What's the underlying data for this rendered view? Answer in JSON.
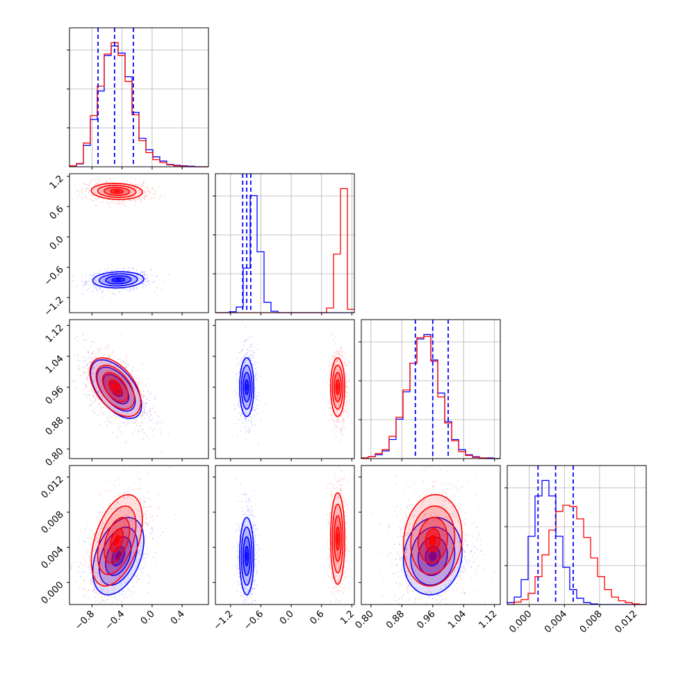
{
  "chart_data": {
    "type": "corner",
    "n_params": 4,
    "colors": {
      "series_a": "#0000ff",
      "series_b": "#ff0000",
      "grid": "#b0b0b0",
      "frame": "#000000"
    },
    "grid": true,
    "axis_ranges": [
      [
        -1.1,
        0.75
      ],
      [
        -1.5,
        1.25
      ],
      [
        0.775,
        1.135
      ],
      [
        -0.0025,
        0.0133
      ]
    ],
    "tick_labels": [
      [
        "−0.8",
        "−0.4",
        "0.0",
        "0.4"
      ],
      [
        "−1.2",
        "−0.6",
        "0.0",
        "0.6",
        "1.2"
      ],
      [
        "0.80",
        "0.88",
        "0.96",
        "1.04",
        "1.12"
      ],
      [
        "0.000",
        "0.004",
        "0.008",
        "0.012"
      ]
    ],
    "tick_values": [
      [
        -0.8,
        -0.4,
        0.0,
        0.4
      ],
      [
        -1.2,
        -0.6,
        0.0,
        0.6,
        1.2
      ],
      [
        0.8,
        0.88,
        0.96,
        1.04,
        1.12
      ],
      [
        0.0,
        0.004,
        0.008,
        0.012
      ]
    ],
    "quantile_lines": [
      [
        -0.72,
        -0.5,
        -0.25
      ],
      [
        -0.96,
        -0.88,
        -0.8
      ],
      [
        0.915,
        0.96,
        1.0
      ],
      [
        0.001,
        0.003,
        0.005
      ]
    ],
    "histograms": [
      {
        "param": 0,
        "edges_start": -1.1,
        "edges_end": 0.75,
        "bins": 20,
        "series_a": [
          2,
          6,
          45,
          100,
          160,
          235,
          255,
          240,
          190,
          115,
          60,
          36,
          21,
          12,
          5,
          3,
          2,
          1,
          0,
          0
        ],
        "series_b": [
          2,
          7,
          50,
          108,
          170,
          238,
          262,
          235,
          180,
          110,
          55,
          30,
          15,
          9,
          4,
          2,
          1,
          0,
          0,
          0
        ]
      },
      {
        "param": 1,
        "edges_start": -1.5,
        "edges_end": 1.25,
        "bins": 20,
        "series_a": [
          0,
          0,
          2,
          12,
          95,
          250,
          130,
          22,
          3,
          0,
          0,
          0,
          0,
          0,
          0,
          0,
          0,
          0,
          0,
          0
        ],
        "series_b": [
          0,
          0,
          0,
          0,
          0,
          0,
          0,
          0,
          0,
          0,
          0,
          0,
          0,
          0,
          0,
          0,
          10,
          125,
          265,
          7
        ]
      },
      {
        "param": 2,
        "edges_start": 0.775,
        "edges_end": 1.135,
        "bins": 20,
        "series_a": [
          1,
          3,
          6,
          12,
          30,
          62,
          105,
          150,
          188,
          195,
          155,
          103,
          58,
          30,
          14,
          6,
          3,
          1,
          1,
          0
        ],
        "series_b": [
          1,
          3,
          8,
          14,
          35,
          65,
          108,
          150,
          190,
          192,
          153,
          97,
          56,
          28,
          11,
          5,
          2,
          1,
          0,
          0
        ]
      },
      {
        "param": 3,
        "edges_start": -0.0025,
        "edges_end": 0.0133,
        "bins": 20,
        "series_a": [
          3,
          12,
          40,
          110,
          175,
          200,
          175,
          110,
          60,
          24,
          10,
          3,
          1,
          0,
          0,
          0,
          0,
          0,
          0,
          0
        ],
        "series_b": [
          0,
          4,
          8,
          18,
          45,
          80,
          120,
          150,
          160,
          158,
          138,
          108,
          75,
          45,
          24,
          12,
          6,
          3,
          1,
          0
        ]
      }
    ],
    "gaussians_2d": [
      {
        "pair": [
          0,
          1
        ],
        "series_a": {
          "mx": -0.45,
          "my": -0.85,
          "sx": 0.17,
          "sy": 0.08,
          "rho": 0.1
        },
        "series_b": {
          "mx": -0.47,
          "my": 0.9,
          "sx": 0.17,
          "sy": 0.08,
          "rho": -0.1
        }
      },
      {
        "pair": [
          0,
          2
        ],
        "series_a": {
          "mx": -0.48,
          "my": 0.955,
          "sx": 0.17,
          "sy": 0.038,
          "rho": -0.55
        },
        "series_b": {
          "mx": -0.49,
          "my": 0.96,
          "sx": 0.17,
          "sy": 0.038,
          "rho": -0.5
        }
      },
      {
        "pair": [
          1,
          2
        ],
        "series_a": {
          "mx": -0.88,
          "my": 0.96,
          "sx": 0.07,
          "sy": 0.038,
          "rho": 0.0
        },
        "series_b": {
          "mx": 0.92,
          "my": 0.96,
          "sx": 0.07,
          "sy": 0.038,
          "rho": 0.0
        }
      },
      {
        "pair": [
          0,
          3
        ],
        "series_a": {
          "mx": -0.45,
          "my": 0.003,
          "sx": 0.17,
          "sy": 0.0022,
          "rho": 0.4
        },
        "series_b": {
          "mx": -0.47,
          "my": 0.0048,
          "sx": 0.17,
          "sy": 0.0026,
          "rho": 0.45
        }
      },
      {
        "pair": [
          1,
          3
        ],
        "series_a": {
          "mx": -0.88,
          "my": 0.003,
          "sx": 0.07,
          "sy": 0.0022,
          "rho": 0.0
        },
        "series_b": {
          "mx": 0.92,
          "my": 0.005,
          "sx": 0.07,
          "sy": 0.0026,
          "rho": 0.0
        }
      },
      {
        "pair": [
          2,
          3
        ],
        "series_a": {
          "mx": 0.96,
          "my": 0.003,
          "sx": 0.038,
          "sy": 0.0022,
          "rho": 0.1
        },
        "series_b": {
          "mx": 0.96,
          "my": 0.0048,
          "sx": 0.038,
          "sy": 0.0026,
          "rho": 0.1
        }
      }
    ],
    "contour_levels_sigma": [
      0.5,
      1.0,
      1.5,
      2.0
    ],
    "legend": "none",
    "title": "",
    "xlabels": [
      "",
      "",
      "",
      ""
    ],
    "ylabels": [
      "",
      "",
      "",
      ""
    ]
  }
}
